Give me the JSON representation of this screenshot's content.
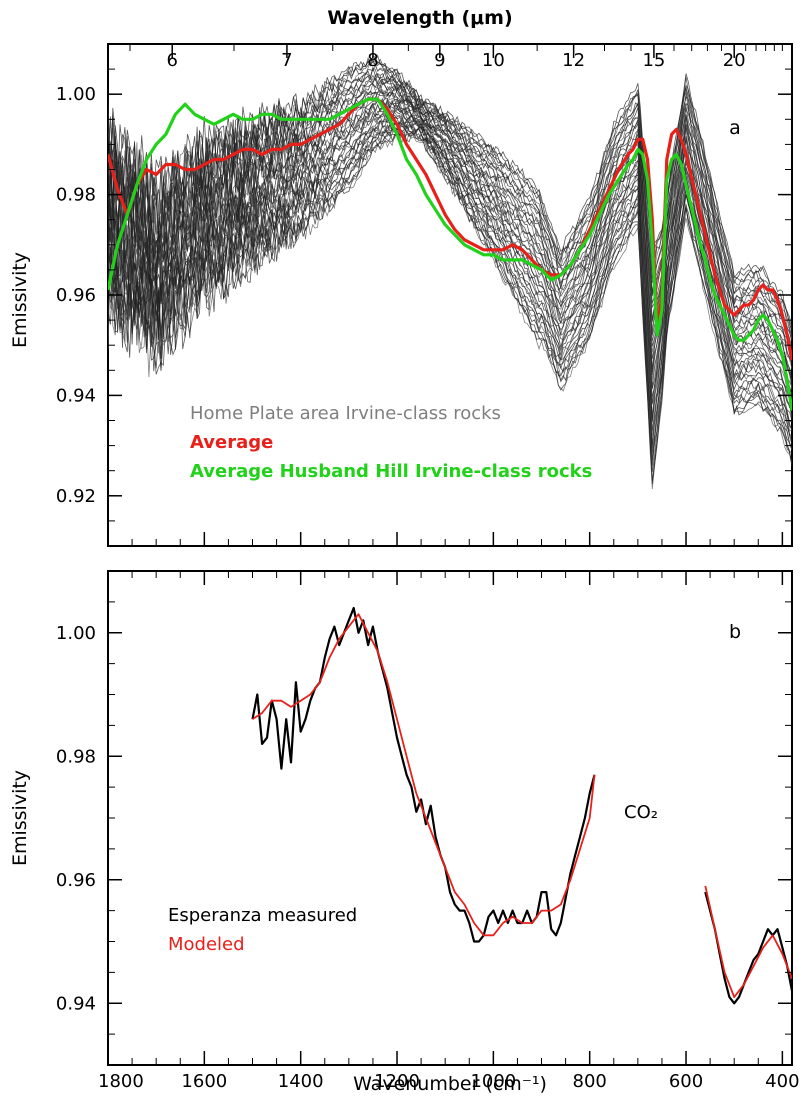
{
  "chart_data": [
    {
      "panel": "a",
      "type": "line",
      "top_axis_label": "Wavelength (μm)",
      "top_ticks": [
        "6",
        "7",
        "8",
        "9",
        "10",
        "12",
        "15",
        "20"
      ],
      "top_tick_values_um": [
        6,
        7,
        8,
        9,
        10,
        12,
        15,
        20
      ],
      "ylabel": "Emissivity",
      "xlim": [
        1800,
        380
      ],
      "ylim": [
        0.91,
        1.01
      ],
      "y_ticks": [
        "0.92",
        "0.94",
        "0.96",
        "0.98",
        "1.00"
      ],
      "grid": false,
      "legend_position": "bottom-left",
      "gap": [
        710,
        560
      ],
      "series": [
        {
          "name": "Home Plate area Irvine-class rocks",
          "color": "#7f7f7f",
          "x_anchors": [
            1800,
            1700,
            1600,
            1500,
            1400,
            1300,
            1250,
            1200,
            1150,
            1100,
            1000,
            900,
            860,
            800,
            750,
            700,
            670,
            650,
            600,
            550,
            500,
            450,
            400,
            380
          ],
          "representative_y": [
            0.975,
            0.965,
            0.975,
            0.98,
            0.985,
            0.993,
            0.998,
            0.998,
            0.995,
            0.99,
            0.978,
            0.965,
            0.955,
            0.965,
            0.98,
            0.988,
            0.955,
            0.96,
            0.99,
            0.97,
            0.95,
            0.952,
            0.946,
            0.94
          ],
          "count": 45
        },
        {
          "name": "Average",
          "color": "#e8201a",
          "x": [
            1800,
            1780,
            1760,
            1740,
            1720,
            1700,
            1680,
            1660,
            1640,
            1620,
            1600,
            1580,
            1560,
            1540,
            1520,
            1500,
            1480,
            1460,
            1440,
            1420,
            1400,
            1380,
            1360,
            1340,
            1320,
            1300,
            1280,
            1260,
            1240,
            1220,
            1200,
            1180,
            1160,
            1140,
            1120,
            1100,
            1080,
            1060,
            1040,
            1020,
            1000,
            980,
            960,
            940,
            920,
            900,
            880,
            860,
            840,
            820,
            800,
            780,
            760,
            740,
            720,
            710,
            700,
            690,
            680,
            670,
            660,
            650,
            640,
            630,
            620,
            610,
            600,
            590,
            580,
            570,
            560,
            550,
            540,
            530,
            520,
            510,
            500,
            490,
            480,
            470,
            460,
            450,
            440,
            430,
            420,
            410,
            400,
            390,
            380
          ],
          "y": [
            0.988,
            0.981,
            0.976,
            0.982,
            0.985,
            0.984,
            0.986,
            0.986,
            0.985,
            0.985,
            0.986,
            0.987,
            0.987,
            0.988,
            0.989,
            0.989,
            0.988,
            0.989,
            0.989,
            0.99,
            0.99,
            0.991,
            0.992,
            0.993,
            0.994,
            0.996,
            0.998,
            0.999,
            0.999,
            0.997,
            0.994,
            0.99,
            0.987,
            0.984,
            0.98,
            0.976,
            0.973,
            0.971,
            0.97,
            0.969,
            0.969,
            0.969,
            0.97,
            0.969,
            0.967,
            0.965,
            0.964,
            0.964,
            0.966,
            0.969,
            0.973,
            0.977,
            0.981,
            0.985,
            0.988,
            0.989,
            0.991,
            0.991,
            0.987,
            0.975,
            0.953,
            0.96,
            0.987,
            0.992,
            0.993,
            0.991,
            0.988,
            0.984,
            0.98,
            0.976,
            0.972,
            0.968,
            0.964,
            0.961,
            0.958,
            0.957,
            0.956,
            0.957,
            0.958,
            0.958,
            0.959,
            0.961,
            0.962,
            0.961,
            0.961,
            0.959,
            0.956,
            0.952,
            0.947
          ]
        },
        {
          "name": "Average Husband Hill Irvine-class rocks",
          "color": "#22d11a",
          "x": [
            1800,
            1780,
            1760,
            1740,
            1720,
            1700,
            1680,
            1660,
            1640,
            1620,
            1600,
            1580,
            1560,
            1540,
            1520,
            1500,
            1480,
            1460,
            1440,
            1420,
            1400,
            1380,
            1360,
            1340,
            1320,
            1300,
            1280,
            1260,
            1240,
            1220,
            1200,
            1180,
            1160,
            1140,
            1120,
            1100,
            1080,
            1060,
            1040,
            1020,
            1000,
            980,
            960,
            940,
            920,
            900,
            880,
            860,
            840,
            820,
            800,
            780,
            760,
            740,
            720,
            710,
            700,
            690,
            680,
            670,
            660,
            650,
            640,
            630,
            620,
            610,
            600,
            590,
            580,
            570,
            560,
            550,
            540,
            530,
            520,
            510,
            500,
            490,
            480,
            470,
            460,
            450,
            440,
            430,
            420,
            410,
            400,
            390,
            380
          ],
          "y": [
            0.961,
            0.97,
            0.976,
            0.982,
            0.987,
            0.99,
            0.992,
            0.996,
            0.998,
            0.996,
            0.995,
            0.994,
            0.995,
            0.996,
            0.995,
            0.995,
            0.996,
            0.996,
            0.995,
            0.995,
            0.995,
            0.995,
            0.995,
            0.995,
            0.996,
            0.997,
            0.998,
            0.999,
            0.999,
            0.996,
            0.992,
            0.987,
            0.984,
            0.98,
            0.977,
            0.974,
            0.972,
            0.97,
            0.969,
            0.968,
            0.968,
            0.967,
            0.967,
            0.967,
            0.966,
            0.965,
            0.963,
            0.964,
            0.966,
            0.969,
            0.972,
            0.976,
            0.98,
            0.983,
            0.986,
            0.987,
            0.989,
            0.988,
            0.983,
            0.97,
            0.952,
            0.957,
            0.983,
            0.987,
            0.988,
            0.986,
            0.982,
            0.978,
            0.974,
            0.97,
            0.967,
            0.963,
            0.96,
            0.958,
            0.956,
            0.954,
            0.952,
            0.951,
            0.951,
            0.952,
            0.953,
            0.955,
            0.956,
            0.955,
            0.953,
            0.951,
            0.948,
            0.943,
            0.937
          ]
        }
      ],
      "legend": [
        "Home Plate area Irvine-class rocks",
        "Average",
        "Average Husband Hill Irvine-class rocks"
      ],
      "legend_colors": [
        "#7f7f7f",
        "#e8201a",
        "#22d11a"
      ]
    },
    {
      "panel": "b",
      "type": "line",
      "xlabel": "Wavenumber (cm⁻¹)",
      "ylabel": "Emissivity",
      "xlim": [
        1800,
        380
      ],
      "ylim": [
        0.93,
        1.01
      ],
      "x_ticks": [
        "1800",
        "1600",
        "1400",
        "1200",
        "1000",
        "800",
        "600",
        "400"
      ],
      "y_ticks": [
        "0.94",
        "0.96",
        "0.98",
        "1.00"
      ],
      "grid": false,
      "legend_position": "bottom-left",
      "annotation": "CO₂",
      "series": [
        {
          "name": "Esperanza measured",
          "color": "#000000",
          "segments": [
            {
              "x": [
                1500,
                1490,
                1480,
                1470,
                1460,
                1450,
                1440,
                1430,
                1420,
                1410,
                1400,
                1390,
                1380,
                1370,
                1360,
                1350,
                1340,
                1330,
                1320,
                1310,
                1300,
                1290,
                1280,
                1270,
                1260,
                1250,
                1240,
                1230,
                1220,
                1210,
                1200,
                1190,
                1180,
                1170,
                1160,
                1150,
                1140,
                1130,
                1120,
                1110,
                1100,
                1090,
                1080,
                1070,
                1060,
                1050,
                1040,
                1030,
                1020,
                1010,
                1000,
                990,
                980,
                970,
                960,
                950,
                940,
                930,
                920,
                910,
                900,
                890,
                880,
                870,
                860,
                850,
                840,
                830,
                820,
                810,
                800,
                790
              ],
              "y": [
                0.986,
                0.99,
                0.982,
                0.983,
                0.989,
                0.986,
                0.978,
                0.986,
                0.979,
                0.992,
                0.984,
                0.986,
                0.989,
                0.991,
                0.992,
                0.996,
                0.999,
                1.001,
                0.998,
                1.0,
                1.002,
                1.004,
                1.0,
                1.002,
                0.998,
                1.001,
                0.997,
                0.994,
                0.991,
                0.987,
                0.983,
                0.98,
                0.977,
                0.975,
                0.971,
                0.973,
                0.969,
                0.972,
                0.967,
                0.964,
                0.962,
                0.958,
                0.956,
                0.955,
                0.955,
                0.953,
                0.95,
                0.95,
                0.951,
                0.954,
                0.955,
                0.953,
                0.955,
                0.953,
                0.955,
                0.953,
                0.953,
                0.955,
                0.953,
                0.954,
                0.958,
                0.958,
                0.952,
                0.951,
                0.953,
                0.957,
                0.961,
                0.964,
                0.967,
                0.97,
                0.974,
                0.977
              ]
            },
            {
              "x": [
                560,
                550,
                540,
                530,
                520,
                510,
                500,
                490,
                480,
                470,
                460,
                450,
                440,
                430,
                420,
                410,
                400,
                390,
                380
              ],
              "y": [
                0.958,
                0.955,
                0.952,
                0.948,
                0.944,
                0.941,
                0.94,
                0.941,
                0.943,
                0.945,
                0.947,
                0.948,
                0.95,
                0.952,
                0.951,
                0.952,
                0.949,
                0.946,
                0.942
              ]
            }
          ]
        },
        {
          "name": "Modeled",
          "color": "#e8201a",
          "segments": [
            {
              "x": [
                1500,
                1480,
                1460,
                1440,
                1420,
                1400,
                1380,
                1360,
                1340,
                1320,
                1300,
                1280,
                1260,
                1240,
                1220,
                1200,
                1180,
                1160,
                1140,
                1120,
                1100,
                1080,
                1060,
                1040,
                1020,
                1000,
                980,
                960,
                940,
                920,
                900,
                880,
                860,
                840,
                820,
                800,
                790
              ],
              "y": [
                0.986,
                0.987,
                0.989,
                0.989,
                0.988,
                0.989,
                0.99,
                0.992,
                0.996,
                0.999,
                1.001,
                1.003,
                1.0,
                0.997,
                0.992,
                0.986,
                0.98,
                0.974,
                0.97,
                0.966,
                0.962,
                0.958,
                0.956,
                0.953,
                0.951,
                0.951,
                0.953,
                0.954,
                0.953,
                0.953,
                0.955,
                0.955,
                0.956,
                0.96,
                0.965,
                0.97,
                0.977
              ]
            },
            {
              "x": [
                560,
                540,
                520,
                500,
                480,
                460,
                440,
                420,
                400,
                380
              ],
              "y": [
                0.959,
                0.952,
                0.945,
                0.941,
                0.943,
                0.946,
                0.949,
                0.951,
                0.948,
                0.944
              ]
            }
          ]
        }
      ],
      "legend": [
        "Esperanza measured",
        "Modeled"
      ],
      "legend_colors": [
        "#000000",
        "#e8201a"
      ]
    }
  ],
  "panel_a": {
    "panel_letter": "a",
    "top_axis_label": "Wavelength (μm)",
    "ylabel": "Emissivity",
    "legend": [
      "Home Plate area Irvine-class rocks",
      "Average",
      "Average Husband Hill Irvine-class rocks"
    ]
  },
  "panel_b": {
    "panel_letter": "b",
    "xlabel": "Wavenumber (cm⁻¹)",
    "ylabel": "Emissivity",
    "annotation": "CO₂",
    "legend": [
      "Esperanza measured",
      "Modeled"
    ]
  }
}
